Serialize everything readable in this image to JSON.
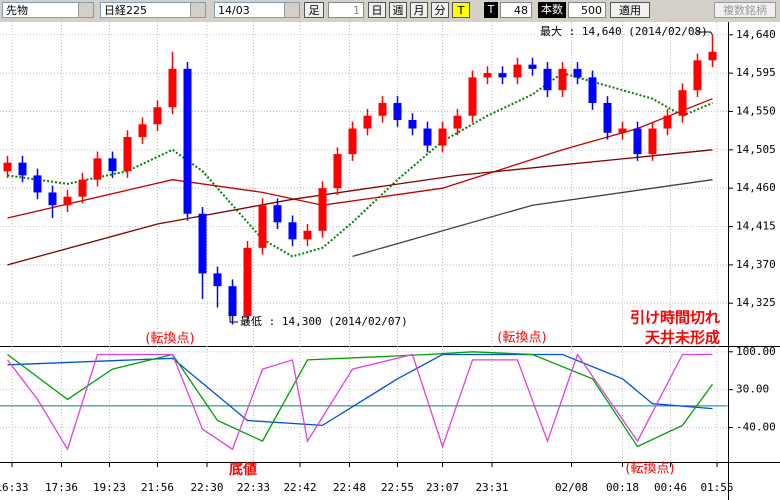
{
  "toolbar": {
    "market": "先物",
    "index": "日経225",
    "contract": "14/03",
    "bar_label": "足",
    "bar_value": "1",
    "periods": [
      "日",
      "週",
      "月",
      "分"
    ],
    "tick_button": "T",
    "t_label": "T",
    "t_value": "48",
    "count_label": "本数",
    "count_value": "500",
    "apply": "適用",
    "multi": "複数銘柄"
  },
  "chart_data": [
    {
      "type": "candlestick",
      "open": [
        14480,
        14490,
        14475,
        14455,
        14440,
        14450,
        14470,
        14495,
        14480,
        14520,
        14535,
        14555,
        14600,
        14430,
        14360,
        14345,
        14310,
        14390,
        14440,
        14420,
        14400,
        14410,
        14460,
        14500,
        14530,
        14545,
        14560,
        14540,
        14530,
        14510,
        14530,
        14545,
        14590,
        14595,
        14590,
        14605,
        14600,
        14575,
        14600,
        14590,
        14560,
        14525,
        14530,
        14500,
        14530,
        14545,
        14575,
        14610
      ],
      "high": [
        14498,
        14498,
        14483,
        14463,
        14458,
        14478,
        14503,
        14503,
        14528,
        14543,
        14563,
        14620,
        14608,
        14438,
        14368,
        14353,
        14398,
        14448,
        14448,
        14428,
        14418,
        14468,
        14508,
        14538,
        14553,
        14568,
        14568,
        14548,
        14538,
        14538,
        14553,
        14598,
        14603,
        14603,
        14613,
        14613,
        14608,
        14608,
        14608,
        14598,
        14568,
        14538,
        14538,
        14538,
        14553,
        14583,
        14618,
        14640
      ],
      "low": [
        14472,
        14467,
        14447,
        14425,
        14432,
        14442,
        14462,
        14472,
        14472,
        14512,
        14527,
        14547,
        14422,
        14330,
        14320,
        14300,
        14302,
        14382,
        14412,
        14392,
        14392,
        14402,
        14452,
        14492,
        14522,
        14537,
        14532,
        14522,
        14502,
        14502,
        14522,
        14537,
        14582,
        14582,
        14582,
        14592,
        14567,
        14567,
        14582,
        14552,
        14517,
        14517,
        14492,
        14492,
        14522,
        14537,
        14567,
        14602
      ],
      "close": [
        14490,
        14475,
        14455,
        14440,
        14450,
        14470,
        14495,
        14480,
        14520,
        14535,
        14555,
        14600,
        14430,
        14360,
        14345,
        14310,
        14390,
        14440,
        14420,
        14400,
        14410,
        14460,
        14500,
        14530,
        14545,
        14560,
        14540,
        14530,
        14510,
        14530,
        14545,
        14590,
        14595,
        14590,
        14605,
        14600,
        14575,
        14600,
        14590,
        14560,
        14525,
        14530,
        14500,
        14530,
        14545,
        14575,
        14610,
        14620
      ],
      "up_color": "#ff0000",
      "down_color": "#0000ff",
      "lines": [
        {
          "color": "#008000",
          "dash": true,
          "x": [
            0,
            4,
            8,
            11,
            13,
            15,
            17,
            19,
            21,
            23,
            26,
            29,
            32,
            35,
            37,
            40,
            43,
            45,
            47
          ],
          "values": [
            14475,
            14465,
            14480,
            14505,
            14480,
            14440,
            14400,
            14380,
            14390,
            14420,
            14470,
            14515,
            14545,
            14570,
            14595,
            14580,
            14565,
            14545,
            14560
          ]
        },
        {
          "color": "#c00000",
          "dash": false,
          "x": [
            0,
            11,
            17,
            21,
            29,
            37,
            42,
            47
          ],
          "values": [
            14425,
            14470,
            14455,
            14440,
            14460,
            14505,
            14530,
            14565
          ]
        },
        {
          "color": "#800000",
          "dash": false,
          "x": [
            0,
            10,
            19,
            30,
            47
          ],
          "values": [
            14370,
            14418,
            14447,
            14475,
            14505
          ]
        },
        {
          "color": "#404040",
          "dash": false,
          "x": [
            23,
            35,
            47
          ],
          "values": [
            14380,
            14440,
            14470
          ]
        }
      ],
      "xlim": [
        -0.5,
        48
      ],
      "xticks": [
        {
          "value": 0.3,
          "label": "16:33"
        },
        {
          "value": 3.6,
          "label": "17:36"
        },
        {
          "value": 6.8,
          "label": "19:23"
        },
        {
          "value": 10,
          "label": "21:56"
        },
        {
          "value": 13.3,
          "label": "22:30"
        },
        {
          "value": 16.4,
          "label": "22:33"
        },
        {
          "value": 19.5,
          "label": "22:42"
        },
        {
          "value": 22.8,
          "label": "22:48"
        },
        {
          "value": 26,
          "label": "22:55"
        },
        {
          "value": 29,
          "label": "23:07"
        },
        {
          "value": 32.3,
          "label": "23:31"
        },
        {
          "value": 37.6,
          "label": "02/08"
        },
        {
          "value": 41,
          "label": "00:18"
        },
        {
          "value": 44.2,
          "label": "00:46"
        },
        {
          "value": 47.3,
          "label": "01:55"
        }
      ],
      "ylim": [
        14276,
        14655
      ],
      "yticks": [
        {
          "value": 14640,
          "label": "14,640"
        },
        {
          "value": 14595,
          "label": "14,595"
        },
        {
          "value": 14550,
          "label": "14,550"
        },
        {
          "value": 14505,
          "label": "14,505"
        },
        {
          "value": 14460,
          "label": "14,460"
        },
        {
          "value": 14415,
          "label": "14,415"
        },
        {
          "value": 14370,
          "label": "14,370"
        },
        {
          "value": 14325,
          "label": "14,325"
        }
      ],
      "grid": true,
      "max_note": "最大 : 14,640 (2014/02/08)",
      "min_note": "最低 : 14,300 (2014/02/07)",
      "turn_notes": [
        "(転換点)",
        "(転換点)",
        "(転換点)"
      ],
      "close_note": [
        "引け時間切れ",
        "天井未形成"
      ],
      "bottom_note": "底値"
    },
    {
      "type": "line",
      "lines": [
        {
          "color": "#0050e0",
          "dash": false,
          "x": [
            0,
            11,
            16,
            21,
            26,
            29,
            37,
            41,
            43,
            47
          ],
          "values": [
            76,
            88,
            -27,
            -36,
            50,
            95,
            95,
            50,
            4,
            -5
          ]
        },
        {
          "color": "#00a000",
          "dash": false,
          "x": [
            0,
            4,
            7,
            11,
            14,
            17,
            20,
            28,
            31,
            35,
            39,
            42,
            45,
            47
          ],
          "values": [
            95,
            12,
            68,
            95,
            -27,
            -65,
            85,
            95,
            100,
            95,
            50,
            -75,
            -36,
            40
          ]
        },
        {
          "color": "#e040e0",
          "dash": false,
          "x": [
            0,
            2,
            4,
            6,
            11,
            13,
            15,
            17,
            19,
            20,
            23,
            27,
            29,
            31,
            34,
            36,
            38,
            42,
            45,
            47
          ],
          "values": [
            85,
            12,
            -80,
            95,
            95,
            -43,
            -80,
            68,
            85,
            -65,
            68,
            95,
            -75,
            85,
            85,
            -65,
            95,
            -65,
            95,
            95
          ]
        }
      ],
      "zero_line": 0,
      "xlim": [
        -0.5,
        48
      ],
      "ylim": [
        -100,
        107
      ],
      "yticks": [
        {
          "value": 100,
          "label": "100.00"
        },
        {
          "value": 30,
          "label": "30.00"
        },
        {
          "value": -40,
          "label": "-40.00"
        }
      ],
      "grid": true
    }
  ]
}
